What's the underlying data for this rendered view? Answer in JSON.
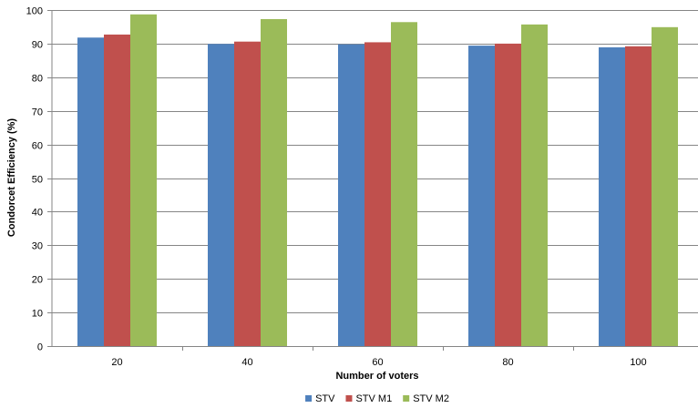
{
  "chart_data": {
    "type": "bar",
    "categories": [
      "20",
      "40",
      "60",
      "80",
      "100"
    ],
    "series": [
      {
        "name": "STV",
        "color": "#4F81BD",
        "values": [
          91.8,
          89.9,
          89.8,
          89.4,
          88.9
        ]
      },
      {
        "name": "STV M1",
        "color": "#C0504D",
        "values": [
          92.7,
          90.6,
          90.4,
          90.0,
          89.2
        ]
      },
      {
        "name": "STV M2",
        "color": "#9BBB59",
        "values": [
          98.7,
          97.3,
          96.4,
          95.7,
          94.9
        ]
      }
    ],
    "xlabel": "Number of voters",
    "ylabel": "Condorcet Efficiency (%)",
    "ylim": [
      0,
      100
    ],
    "yticks": [
      0,
      10,
      20,
      30,
      40,
      50,
      60,
      70,
      80,
      90,
      100
    ],
    "grid": true,
    "legend_position": "bottom"
  }
}
